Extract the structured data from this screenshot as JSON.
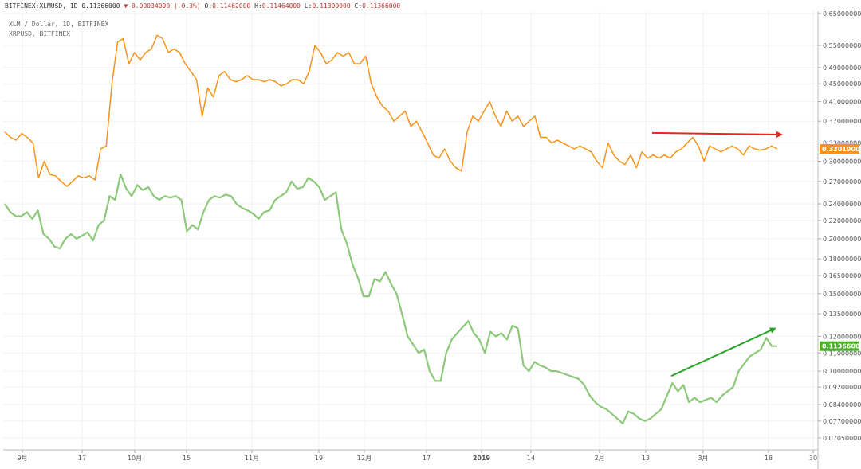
{
  "header": {
    "symbol": "BITFINEX:XLMUSD, 1D",
    "last": "0.11366000",
    "change": "-0.00034000 (-0.3%)",
    "o_label": "O:",
    "o": "0.11462000",
    "h_label": "H:",
    "h": "0.11464000",
    "l_label": "L:",
    "l": "0.11300000",
    "c_label": "C:",
    "c": "0.11366000"
  },
  "legend": {
    "line1": "XLM / Dollar, 1D, BITFINEX",
    "line2": "XRPUSD, BITFINEX"
  },
  "colors": {
    "xrp": "#f7931a",
    "xlm": "#8dc87a",
    "red_arrow": "#e8261c",
    "green_arrow": "#2aa52a",
    "xlm_badge": "#4caf2a"
  },
  "chart_data": {
    "type": "line",
    "scale": "log",
    "x_ticks": [
      "9月",
      "17",
      "10月",
      "15",
      "11月",
      "19",
      "12月",
      "17",
      "2019",
      "14",
      "2月",
      "13",
      "3月",
      "18",
      "30"
    ],
    "y_ticks": [
      "0.65000000",
      "0.55000000",
      "0.49000000",
      "0.45000000",
      "0.41000000",
      "0.37000000",
      "0.33000000",
      "0.30000000",
      "0.27000000",
      "0.24000000",
      "0.22000000",
      "0.20000000",
      "0.18000000",
      "0.16500000",
      "0.15000000",
      "0.13500000",
      "0.12000000",
      "0.11000000",
      "0.10000000",
      "0.09200000",
      "0.08400000",
      "0.07700000",
      "0.07050000"
    ],
    "series": [
      {
        "name": "XRPUSD, BITFINEX",
        "last_label": "0.32019000",
        "values": [
          0.35,
          0.34,
          0.335,
          0.347,
          0.34,
          0.33,
          0.275,
          0.3,
          0.28,
          0.278,
          0.27,
          0.263,
          0.27,
          0.278,
          0.275,
          0.278,
          0.272,
          0.32,
          0.325,
          0.45,
          0.56,
          0.57,
          0.5,
          0.53,
          0.51,
          0.53,
          0.54,
          0.58,
          0.57,
          0.53,
          0.54,
          0.53,
          0.5,
          0.48,
          0.46,
          0.38,
          0.44,
          0.42,
          0.47,
          0.48,
          0.46,
          0.455,
          0.46,
          0.47,
          0.46,
          0.46,
          0.455,
          0.46,
          0.455,
          0.445,
          0.45,
          0.46,
          0.46,
          0.45,
          0.48,
          0.55,
          0.53,
          0.5,
          0.51,
          0.53,
          0.52,
          0.53,
          0.5,
          0.5,
          0.52,
          0.45,
          0.42,
          0.4,
          0.39,
          0.37,
          0.38,
          0.39,
          0.36,
          0.37,
          0.35,
          0.33,
          0.31,
          0.305,
          0.32,
          0.3,
          0.29,
          0.285,
          0.35,
          0.38,
          0.37,
          0.39,
          0.41,
          0.38,
          0.36,
          0.39,
          0.37,
          0.38,
          0.36,
          0.37,
          0.38,
          0.34,
          0.34,
          0.33,
          0.335,
          0.33,
          0.325,
          0.32,
          0.325,
          0.32,
          0.315,
          0.3,
          0.29,
          0.33,
          0.31,
          0.3,
          0.295,
          0.31,
          0.29,
          0.315,
          0.305,
          0.31,
          0.305,
          0.31,
          0.305,
          0.315,
          0.32,
          0.33,
          0.34,
          0.325,
          0.3,
          0.325,
          0.32,
          0.315,
          0.32,
          0.325,
          0.32,
          0.31,
          0.325,
          0.32,
          0.318,
          0.32,
          0.325,
          0.32
        ]
      },
      {
        "name": "XLM / Dollar, 1D, BITFINEX",
        "last_label": "0.11366000",
        "values": [
          0.24,
          0.23,
          0.225,
          0.225,
          0.23,
          0.222,
          0.232,
          0.205,
          0.2,
          0.192,
          0.19,
          0.2,
          0.205,
          0.2,
          0.203,
          0.207,
          0.198,
          0.215,
          0.22,
          0.25,
          0.245,
          0.28,
          0.26,
          0.25,
          0.265,
          0.258,
          0.262,
          0.25,
          0.245,
          0.25,
          0.248,
          0.25,
          0.245,
          0.208,
          0.215,
          0.21,
          0.23,
          0.245,
          0.25,
          0.248,
          0.252,
          0.25,
          0.24,
          0.235,
          0.232,
          0.228,
          0.222,
          0.23,
          0.232,
          0.245,
          0.25,
          0.255,
          0.27,
          0.26,
          0.262,
          0.275,
          0.27,
          0.262,
          0.245,
          0.25,
          0.255,
          0.21,
          0.195,
          0.175,
          0.163,
          0.148,
          0.148,
          0.162,
          0.16,
          0.168,
          0.158,
          0.15,
          0.135,
          0.12,
          0.115,
          0.11,
          0.112,
          0.1,
          0.095,
          0.095,
          0.11,
          0.118,
          0.122,
          0.126,
          0.13,
          0.122,
          0.118,
          0.11,
          0.123,
          0.12,
          0.122,
          0.118,
          0.127,
          0.125,
          0.103,
          0.1,
          0.105,
          0.103,
          0.102,
          0.1,
          0.1,
          0.099,
          0.098,
          0.097,
          0.096,
          0.093,
          0.088,
          0.085,
          0.083,
          0.082,
          0.08,
          0.078,
          0.076,
          0.081,
          0.08,
          0.078,
          0.077,
          0.078,
          0.08,
          0.082,
          0.088,
          0.094,
          0.09,
          0.093,
          0.085,
          0.087,
          0.085,
          0.086,
          0.087,
          0.085,
          0.088,
          0.09,
          0.092,
          0.1,
          0.104,
          0.108,
          0.11,
          0.112,
          0.119,
          0.114,
          0.114
        ]
      }
    ]
  }
}
